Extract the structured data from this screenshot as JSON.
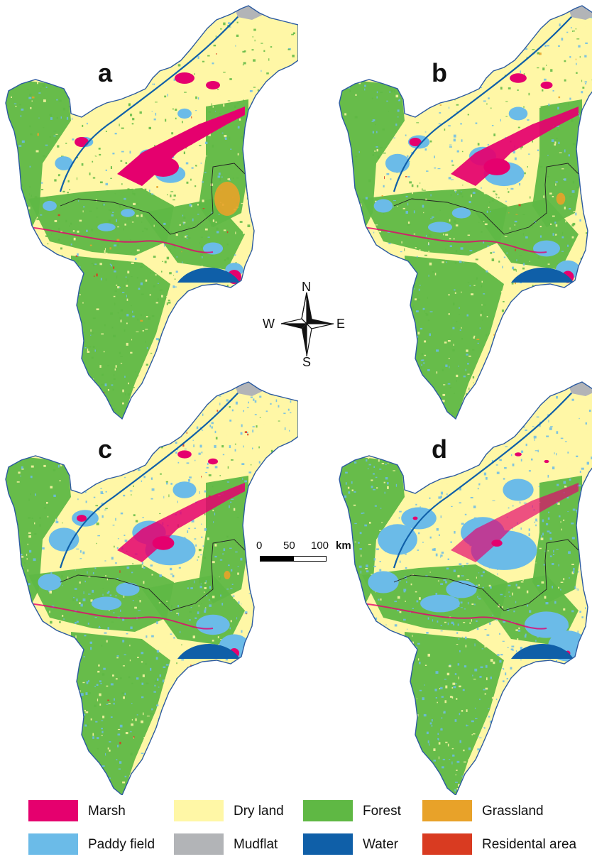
{
  "panels": [
    {
      "label": "a"
    },
    {
      "label": "b"
    },
    {
      "label": "c"
    },
    {
      "label": "d"
    }
  ],
  "compass": {
    "north": "N",
    "south": "S",
    "east": "E",
    "west": "W"
  },
  "scale_bar": {
    "ticks": [
      "0",
      "50",
      "100"
    ],
    "unit": "km"
  },
  "legend": [
    {
      "label": "Marsh",
      "color": "#e5006e"
    },
    {
      "label": "Dry land",
      "color": "#fff7a6"
    },
    {
      "label": "Forest",
      "color": "#5fb844"
    },
    {
      "label": "Grassland",
      "color": "#e8a229"
    },
    {
      "label": "Paddy field",
      "color": "#6bbbe8"
    },
    {
      "label": "Mudflat",
      "color": "#b2b4b7"
    },
    {
      "label": "Water",
      "color": "#0f5fa8"
    },
    {
      "label": "Residental area",
      "color": "#d93b21"
    }
  ]
}
